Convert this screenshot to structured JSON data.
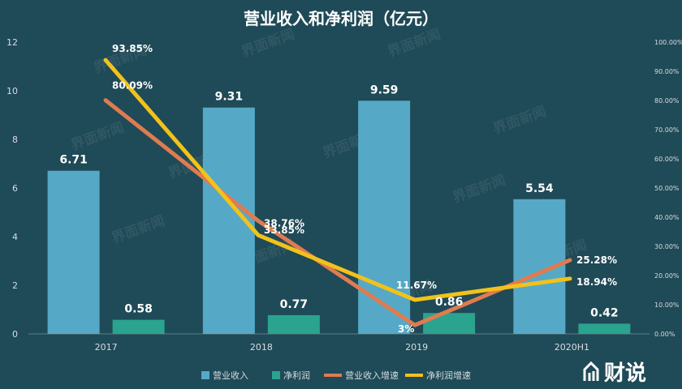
{
  "chart_data": {
    "type": "bar",
    "title": "营业收入和净利润（亿元）",
    "categories": [
      "2017",
      "2018",
      "2019",
      "2020H1"
    ],
    "y_left": {
      "min": 0,
      "max": 12,
      "ticks": [
        "0",
        "2",
        "4",
        "6",
        "8",
        "10",
        "12"
      ]
    },
    "y_right": {
      "min": 0,
      "max": 100,
      "ticks": [
        "0.00%",
        "10.00%",
        "20.00%",
        "30.00%",
        "40.00%",
        "50.00%",
        "60.00%",
        "70.00%",
        "80.00%",
        "90.00%",
        "100.00%"
      ]
    },
    "series": [
      {
        "name": "营业收入",
        "kind": "bar",
        "axis": "left",
        "color": "#56a9c6",
        "values": [
          6.71,
          9.31,
          9.59,
          5.54
        ],
        "labels": [
          "6.71",
          "9.31",
          "9.59",
          "5.54"
        ]
      },
      {
        "name": "净利润",
        "kind": "bar",
        "axis": "left",
        "color": "#2aa38f",
        "values": [
          0.58,
          0.77,
          0.86,
          0.42
        ],
        "labels": [
          "0.58",
          "0.77",
          "0.86",
          "0.42"
        ]
      },
      {
        "name": "营业收入增速",
        "kind": "line",
        "axis": "right",
        "color": "#e07b50",
        "values": [
          80.09,
          38.76,
          3,
          25.28
        ],
        "labels": [
          "80.09%",
          "38.76%",
          "3%",
          "25.28%"
        ]
      },
      {
        "name": "净利润增速",
        "kind": "line",
        "axis": "right",
        "color": "#f2c21b",
        "values": [
          93.85,
          33.85,
          11.67,
          18.94
        ],
        "labels": [
          "93.85%",
          "33.85%",
          "11.67%",
          "18.94%"
        ]
      }
    ],
    "legend": "bottom-center",
    "grid": false
  },
  "watermark": {
    "text": "界面新闻"
  },
  "brand": {
    "text": "财说"
  },
  "colors": {
    "background": "#1f4a57",
    "text": "#ffffff",
    "axis_text": "#d6dde0"
  }
}
